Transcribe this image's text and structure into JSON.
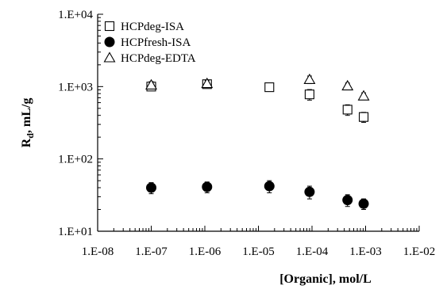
{
  "chart_data": {
    "type": "scatter",
    "xscale": "log",
    "yscale": "log",
    "xlim": [
      1e-08,
      0.01
    ],
    "ylim": [
      10,
      10000
    ],
    "xlabel": "[Organic], mol/L",
    "ylabel": "R_d, mL/g",
    "ylabel_main": "R",
    "ylabel_sub": "d",
    "ylabel_rest": ", mL/g",
    "x_ticks": [
      {
        "value": 1e-08,
        "label": "1.E-08"
      },
      {
        "value": 1e-07,
        "label": "1.E-07"
      },
      {
        "value": 1e-06,
        "label": "1.E-06"
      },
      {
        "value": 1e-05,
        "label": "1.E-05"
      },
      {
        "value": 0.0001,
        "label": "1.E-04"
      },
      {
        "value": 0.001,
        "label": "1.E-03"
      },
      {
        "value": 0.01,
        "label": "1.E-02"
      }
    ],
    "y_ticks": [
      {
        "value": 10,
        "label": "1.E+01"
      },
      {
        "value": 100,
        "label": "1.E+02"
      },
      {
        "value": 1000,
        "label": "1.E+03"
      },
      {
        "value": 10000,
        "label": "1.E+04"
      }
    ],
    "grid": false,
    "legend_position": "top-left",
    "series": [
      {
        "name": "HCPdeg-ISA",
        "marker": "open-square",
        "x": [
          1e-07,
          1.1e-06,
          1.6e-05,
          9e-05,
          0.00046,
          0.00092
        ],
        "y": [
          1000,
          1080,
          980,
          780,
          480,
          380
        ],
        "err_low": [
          120,
          110,
          110,
          130,
          80,
          60
        ],
        "err_high": [
          120,
          110,
          110,
          130,
          80,
          60
        ]
      },
      {
        "name": "HCPfresh-ISA",
        "marker": "filled-circle",
        "x": [
          1e-07,
          1.1e-06,
          1.6e-05,
          9e-05,
          0.00046,
          0.00092
        ],
        "y": [
          40,
          41,
          42,
          35,
          27,
          24
        ],
        "err_low": [
          7,
          7,
          8,
          7,
          5,
          4
        ],
        "err_high": [
          7,
          7,
          8,
          7,
          5,
          4
        ]
      },
      {
        "name": "HCPdeg-EDTA",
        "marker": "open-triangle",
        "x": [
          1e-07,
          1.1e-06,
          9e-05,
          0.00046,
          0.00092
        ],
        "y": [
          1050,
          1100,
          1250,
          1020,
          740
        ],
        "err_low": [
          120,
          110,
          150,
          100,
          80
        ],
        "err_high": [
          120,
          110,
          150,
          100,
          80
        ]
      }
    ]
  }
}
